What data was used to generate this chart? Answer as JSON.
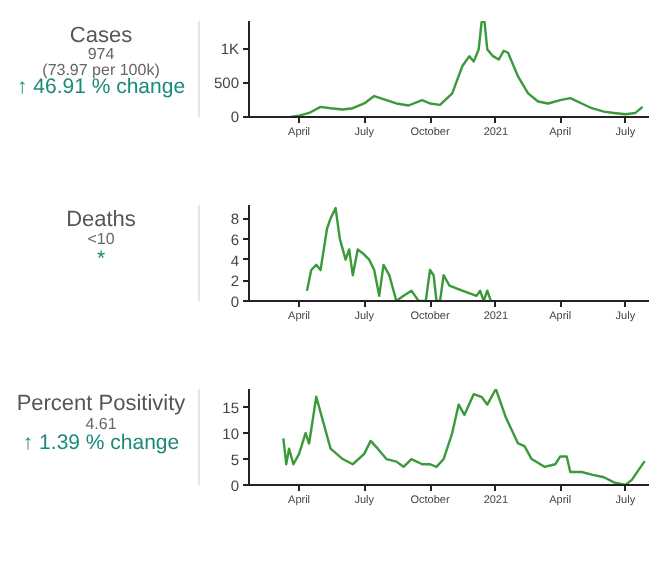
{
  "chart_data": [
    {
      "type": "other",
      "title": "Cases",
      "annotations": [
        "974",
        "(73.97 per 100k)",
        "↑ 46.91 % change"
      ],
      "colors": [
        "#666666",
        "#666666",
        "#1a8a7a"
      ]
    },
    {
      "type": "line",
      "color": "#3a9a3a",
      "xlim": [
        "2020-01-22",
        "2021-08-03"
      ],
      "xticks": [
        {
          "value": "2020-04-01",
          "label": "April"
        },
        {
          "value": "2020-07-01",
          "label": "July"
        },
        {
          "value": "2020-10-01",
          "label": "October"
        },
        {
          "value": "2021-01-01",
          "label": "2021"
        },
        {
          "value": "2021-04-01",
          "label": "April"
        },
        {
          "value": "2021-07-01",
          "label": "July"
        }
      ],
      "ylim": [
        0,
        1420
      ],
      "yticks": [
        0,
        500,
        {
          "value": 1000,
          "label": "1K"
        }
      ],
      "x": [
        "2020-03-20",
        "2020-04-01",
        "2020-04-15",
        "2020-05-01",
        "2020-05-15",
        "2020-06-01",
        "2020-06-15",
        "2020-07-01",
        "2020-07-15",
        "2020-08-01",
        "2020-08-15",
        "2020-09-01",
        "2020-09-20",
        "2020-10-01",
        "2020-10-15",
        "2020-11-01",
        "2020-11-15",
        "2020-11-25",
        "2020-12-01",
        "2020-12-08",
        "2020-12-12",
        "2020-12-16",
        "2020-12-20",
        "2020-12-28",
        "2021-01-05",
        "2021-01-12",
        "2021-01-18",
        "2021-02-01",
        "2021-02-15",
        "2021-03-01",
        "2021-03-15",
        "2021-04-01",
        "2021-04-15",
        "2021-05-01",
        "2021-05-15",
        "2021-06-01",
        "2021-06-15",
        "2021-07-01",
        "2021-07-15",
        "2021-07-25"
      ],
      "values": [
        0,
        20,
        60,
        150,
        130,
        110,
        130,
        200,
        310,
        250,
        200,
        170,
        250,
        200,
        180,
        350,
        750,
        900,
        820,
        1000,
        1400,
        1420,
        1000,
        900,
        850,
        980,
        950,
        600,
        350,
        230,
        200,
        250,
        280,
        200,
        130,
        80,
        60,
        40,
        60,
        150
      ]
    },
    {
      "type": "other",
      "title": "Deaths",
      "annotations": [
        "<10",
        "*"
      ],
      "colors": [
        "#666666",
        "#1a8a7a"
      ]
    },
    {
      "type": "line",
      "color": "#3a9a3a",
      "xlim": [
        "2020-01-22",
        "2021-08-03"
      ],
      "xticks": [
        {
          "value": "2020-04-01",
          "label": "April"
        },
        {
          "value": "2020-07-01",
          "label": "July"
        },
        {
          "value": "2020-10-01",
          "label": "October"
        },
        {
          "value": "2021-01-01",
          "label": "2021"
        },
        {
          "value": "2021-04-01",
          "label": "April"
        },
        {
          "value": "2021-07-01",
          "label": "July"
        }
      ],
      "ylim": [
        0,
        9.3
      ],
      "yticks": [
        0,
        2,
        4,
        6,
        8
      ],
      "x": [
        "2020-04-12",
        "2020-04-18",
        "2020-04-25",
        "2020-05-01",
        "2020-05-10",
        "2020-05-15",
        "2020-05-22",
        "2020-05-28",
        "2020-06-05",
        "2020-06-10",
        "2020-06-15",
        "2020-06-22",
        "2020-07-01",
        "2020-07-08",
        "2020-07-15",
        "2020-07-22",
        "2020-07-28",
        "2020-08-05",
        "2020-08-15",
        "2020-08-25",
        "2020-09-05",
        "2020-09-15",
        "2020-09-25",
        "2020-10-01",
        "2020-10-06",
        "2020-10-10",
        "2020-10-15",
        "2020-10-20",
        "2020-10-28",
        "2020-11-15",
        "2020-12-05",
        "2020-12-10",
        "2020-12-15",
        "2020-12-20",
        "2020-12-25"
      ],
      "values": [
        1,
        3,
        3.5,
        3,
        7,
        8,
        9,
        6,
        4,
        5,
        2.5,
        5,
        4.5,
        4,
        3,
        0.5,
        3.5,
        2.5,
        0,
        0.5,
        1,
        0,
        0,
        3,
        2.5,
        0,
        0,
        2.5,
        1.5,
        1,
        0.5,
        1,
        0,
        1,
        0
      ]
    },
    {
      "type": "other",
      "title": "Percent Positivity",
      "annotations": [
        "4.61",
        "↑ 1.39 % change"
      ],
      "colors": [
        "#666666",
        "#1a8a7a"
      ]
    },
    {
      "type": "line",
      "color": "#3a9a3a",
      "xlim": [
        "2020-01-22",
        "2021-08-03"
      ],
      "xticks": [
        {
          "value": "2020-04-01",
          "label": "April"
        },
        {
          "value": "2020-07-01",
          "label": "July"
        },
        {
          "value": "2020-10-01",
          "label": "October"
        },
        {
          "value": "2021-01-01",
          "label": "2021"
        },
        {
          "value": "2021-04-01",
          "label": "April"
        },
        {
          "value": "2021-07-01",
          "label": "July"
        }
      ],
      "ylim": [
        0,
        18.5
      ],
      "yticks": [
        0,
        5,
        10,
        15
      ],
      "x": [
        "2020-03-10",
        "2020-03-14",
        "2020-03-18",
        "2020-03-24",
        "2020-04-01",
        "2020-04-10",
        "2020-04-15",
        "2020-04-25",
        "2020-05-01",
        "2020-05-15",
        "2020-06-01",
        "2020-06-15",
        "2020-07-01",
        "2020-07-10",
        "2020-07-20",
        "2020-08-01",
        "2020-08-15",
        "2020-08-25",
        "2020-09-05",
        "2020-09-20",
        "2020-10-01",
        "2020-10-10",
        "2020-10-20",
        "2020-11-01",
        "2020-11-10",
        "2020-11-18",
        "2020-12-01",
        "2020-12-12",
        "2020-12-20",
        "2021-01-01",
        "2021-01-15",
        "2021-02-01",
        "2021-02-10",
        "2021-02-20",
        "2021-03-10",
        "2021-03-25",
        "2021-04-01",
        "2021-04-10",
        "2021-04-15",
        "2021-05-01",
        "2021-05-15",
        "2021-06-01",
        "2021-06-15",
        "2021-07-01",
        "2021-07-10",
        "2021-07-20",
        "2021-07-28"
      ],
      "values": [
        9,
        4,
        7,
        4,
        6,
        10,
        8,
        17,
        14,
        7,
        5,
        4,
        6,
        8.5,
        7,
        5,
        4.5,
        3.5,
        5,
        4,
        4,
        3.5,
        5,
        10,
        15.5,
        13.5,
        17.5,
        17,
        15.5,
        18.5,
        13,
        8,
        7.5,
        5,
        3.5,
        4,
        5.5,
        5.5,
        2.5,
        2.5,
        2,
        1.5,
        0.5,
        0,
        1,
        3,
        4.6
      ]
    }
  ]
}
